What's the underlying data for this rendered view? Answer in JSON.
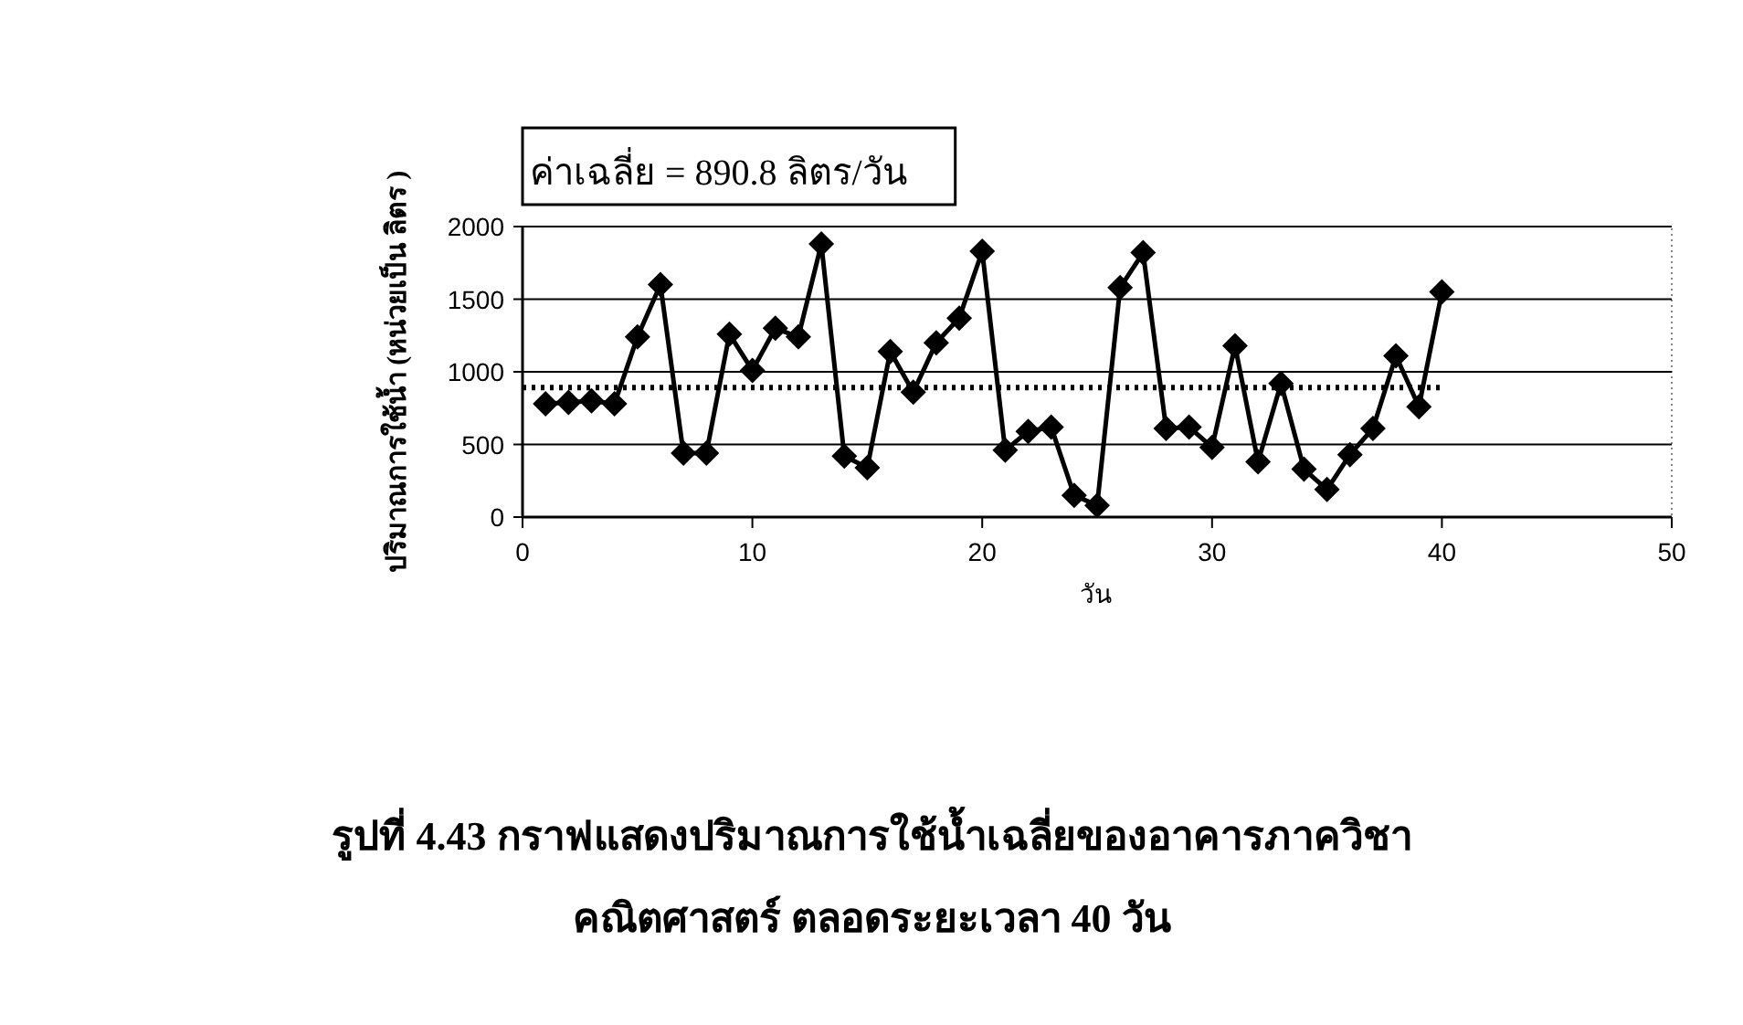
{
  "chart_data": {
    "type": "line",
    "annotations": [
      "ค่าเฉลี่ย = 890.8 ลิตร/วัน",
      "รูปที่ 4.43  กราฟแสดงปริมาณการใช้น้ำเฉลี่ยของอาคารภาควิชา",
      "คณิตศาสตร์ ตลอดระยะเวลา 40 วัน"
    ],
    "xlabel": "วัน",
    "ylabel": "ปริมาณการใช้น้ำ (หน่วยเป็น ลิตร )",
    "x": [
      1,
      2,
      3,
      4,
      5,
      6,
      7,
      8,
      9,
      10,
      11,
      12,
      13,
      14,
      15,
      16,
      17,
      18,
      19,
      20,
      21,
      22,
      23,
      24,
      25,
      26,
      27,
      28,
      29,
      30,
      31,
      32,
      33,
      34,
      35,
      36,
      37,
      38,
      39,
      40
    ],
    "series": [
      {
        "color": "#000000",
        "values": [
          780,
          790,
          800,
          780,
          1240,
          1600,
          440,
          440,
          1260,
          1010,
          1300,
          1240,
          1880,
          420,
          340,
          1140,
          860,
          1200,
          1370,
          1830,
          460,
          590,
          620,
          150,
          80,
          1580,
          1820,
          610,
          620,
          480,
          1180,
          380,
          920,
          330,
          190,
          430,
          610,
          1110,
          760,
          1550
        ]
      }
    ],
    "ref_lines": [
      {
        "axis": "y",
        "value": 890.8,
        "color": "#000000",
        "line_style": "dotted"
      }
    ],
    "xlim": [
      0,
      50
    ],
    "ylim": [
      0,
      2000
    ],
    "xticks": [
      0,
      10,
      20,
      30,
      40,
      50
    ],
    "yticks": [
      0,
      500,
      1000,
      1500,
      2000
    ],
    "grid": "y",
    "marker": "diamond",
    "line_style": "solid"
  }
}
